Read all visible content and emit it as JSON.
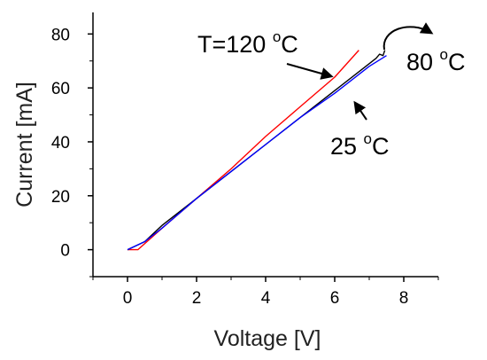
{
  "chart_data": {
    "type": "line",
    "title": "",
    "xlabel": "Voltage [V]",
    "ylabel": "Current [mA]",
    "xlim": [
      -1,
      9
    ],
    "ylim": [
      -10,
      88
    ],
    "xticks": [
      0,
      2,
      4,
      6,
      8
    ],
    "yticks": [
      0,
      20,
      40,
      60,
      80
    ],
    "grid": false,
    "legend": "none",
    "series": [
      {
        "label_id": "t120",
        "color": "#ff0000",
        "x": [
          0,
          0.3,
          1,
          2,
          3,
          4,
          5,
          6,
          6.7
        ],
        "y": [
          0,
          0,
          8,
          19,
          30,
          42,
          53,
          64,
          74
        ]
      },
      {
        "label_id": "t80",
        "color": "#000000",
        "x": [
          0,
          0.5,
          1,
          2,
          3,
          4,
          5,
          6,
          7,
          7.2,
          7.3,
          7.4,
          7.45
        ],
        "y": [
          0,
          3,
          9,
          19,
          29,
          39,
          49,
          59,
          69,
          71,
          72.5,
          72,
          74
        ]
      },
      {
        "label_id": "t25",
        "color": "#0000ff",
        "x": [
          0,
          0.5,
          1,
          2,
          3,
          4,
          5,
          6,
          7,
          7.5
        ],
        "y": [
          0,
          3,
          8,
          19,
          29,
          39,
          49,
          58,
          68,
          72
        ]
      }
    ],
    "annotations": [
      {
        "id": "t120",
        "prefix": "T=120 ",
        "sup": "o",
        "suffix": "C"
      },
      {
        "id": "t80",
        "prefix": "80 ",
        "sup": "o",
        "suffix": "C"
      },
      {
        "id": "t25",
        "prefix": "25 ",
        "sup": "o",
        "suffix": "C"
      }
    ]
  }
}
